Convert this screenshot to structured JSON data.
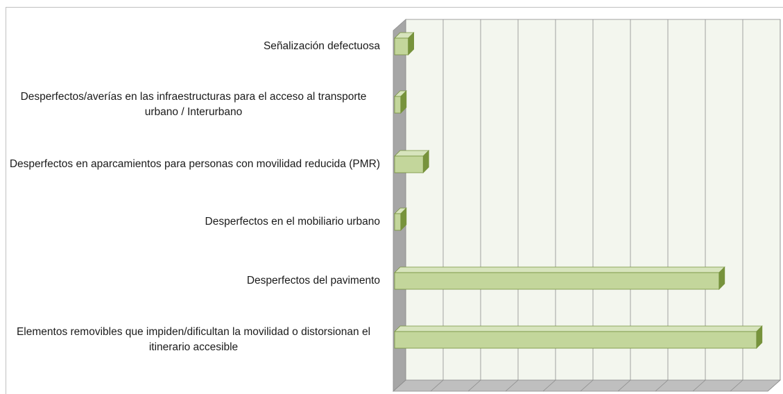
{
  "chart_data": {
    "type": "bar3d_horizontal",
    "categories": [
      "Señalización defectuosa",
      "Desperfectos/averías en las infraestructuras para el acceso al transporte urbano / Interurbano",
      "Desperfectos en aparcamientos para personas con movilidad reducida (PMR)",
      "Desperfectos en el mobiliario urbano",
      "Desperfectos del pavimento",
      "Elementos removibles que impiden/dificultan la movilidad o distorsionan el itinerario accesible"
    ],
    "values": [
      0.4,
      0.2,
      0.8,
      0.2,
      8.7,
      9.7
    ],
    "color": "#c3d69b",
    "xlim": [
      0,
      10
    ],
    "xticks": [
      0,
      1,
      2,
      3,
      4,
      5,
      6,
      7,
      8,
      9,
      10
    ],
    "grid": true
  }
}
